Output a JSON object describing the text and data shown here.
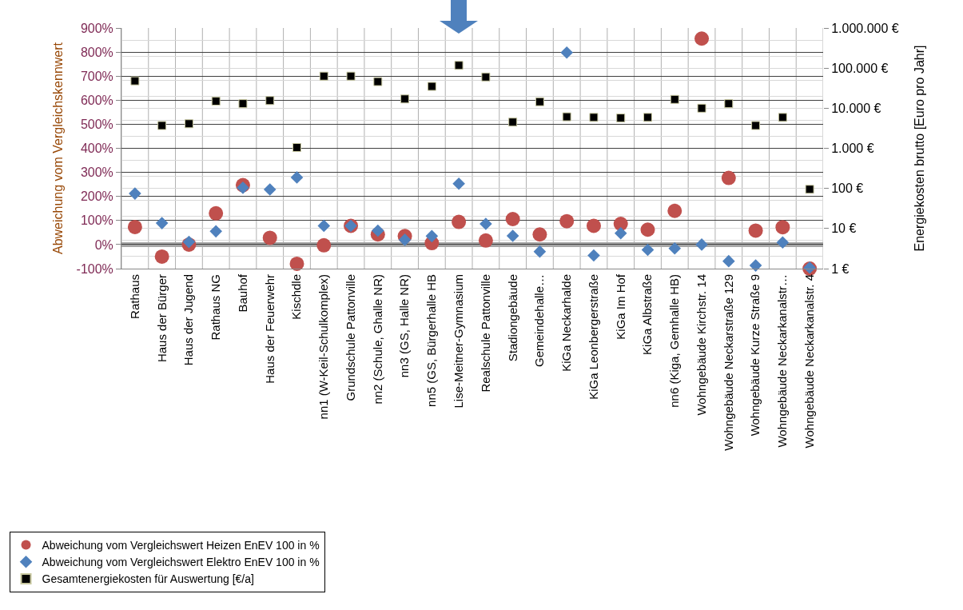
{
  "chart_data": {
    "type": "scatter",
    "categories": [
      "Rathaus",
      "Haus der Bürger",
      "Haus der Jugend",
      "Rathaus NG",
      "Bauhof",
      "Haus der Feuerwehr",
      "Kischdle",
      "nn1 (W-Keil-Schulkomplex)",
      "Grundschule Pattonville",
      "nn2 (Schule, Ghalle NR)",
      "nn3 (GS, Halle NR)",
      "nn5 (GS, Bürgerhalle HB",
      "Lise-Meitner-Gymnasium",
      "Realschule Pattonville",
      "Stadiongebäude",
      "Gemeindehalle…",
      "KiGa Neckarhalde",
      "KiGa Leonbergerstraße",
      "KiGa Im Hof",
      "KiGa Albstraße",
      "nn6 (Kiga, Gemhalle HB)",
      "Wohngebäude Kirchstr. 14",
      "Wohngebäude Neckarstraße 129",
      "Wohngebäude Kurze Straße 9",
      "Wohngebäude Neckarkanalstr…",
      "Wohngebäude Neckarkanalstr. 4"
    ],
    "series": [
      {
        "name": "Abweichung vom Vergleichswert Heizen EnEV 100 in %",
        "color": "#c0504d",
        "marker": "circle",
        "values": [
          73,
          -50,
          0,
          130,
          247,
          28,
          -80,
          -3,
          78,
          42,
          35,
          6,
          94,
          17,
          106,
          42,
          97,
          78,
          86,
          62,
          140,
          856,
          277,
          58,
          72,
          -100
        ]
      },
      {
        "name": "Abweichung vom Vergleichswert Elektro EnEV 100 in %",
        "color": "#4f81bd",
        "marker": "diamond",
        "values": [
          212,
          89,
          11,
          55,
          236,
          229,
          279,
          78,
          78,
          58,
          20,
          35,
          253,
          86,
          36,
          -29,
          798,
          -45,
          47,
          -22,
          -16,
          0,
          -69,
          -87,
          9,
          -96
        ]
      },
      {
        "name": "Gesamtenergiekosten für Auswertung [€/a]",
        "color": "#000000",
        "marker": "square",
        "axis": "y2",
        "values": [
          48000,
          3700,
          4100,
          15000,
          13000,
          15500,
          1050,
          63000,
          63000,
          46000,
          17000,
          35000,
          117000,
          60000,
          4500,
          14500,
          6100,
          5900,
          5700,
          5900,
          16600,
          10000,
          13000,
          3700,
          5900,
          95
        ]
      }
    ],
    "ylabel": "Abweichung vom Vergleichskennwert",
    "y2label": "Energiekosten brutto [Euro pro Jahr]",
    "ylim": [
      -100,
      900
    ],
    "yticks": [
      {
        "value": -100,
        "label": "-100%"
      },
      {
        "value": 0,
        "label": "0%"
      },
      {
        "value": 100,
        "label": "100%"
      },
      {
        "value": 200,
        "label": "200%"
      },
      {
        "value": 300,
        "label": "300%"
      },
      {
        "value": 400,
        "label": "400%"
      },
      {
        "value": 500,
        "label": "500%"
      },
      {
        "value": 600,
        "label": "600%"
      },
      {
        "value": 700,
        "label": "700%"
      },
      {
        "value": 800,
        "label": "800%"
      },
      {
        "value": 900,
        "label": "900%"
      }
    ],
    "y2lim": [
      1,
      1000000
    ],
    "y2ticks": [
      {
        "value": 1,
        "label": "1 €"
      },
      {
        "value": 10,
        "label": "10 €"
      },
      {
        "value": 100,
        "label": "100 €"
      },
      {
        "value": 1000,
        "label": "1.000 €"
      },
      {
        "value": 10000,
        "label": "10.000 €"
      },
      {
        "value": 100000,
        "label": "100.000 €"
      },
      {
        "value": 1000000,
        "label": "1.000.000 €"
      }
    ],
    "log": "y2",
    "ref_lines": [
      {
        "axis": "y",
        "value": 0,
        "color": "#a6a6a6"
      }
    ],
    "grid": true,
    "legend": "bottom left"
  }
}
